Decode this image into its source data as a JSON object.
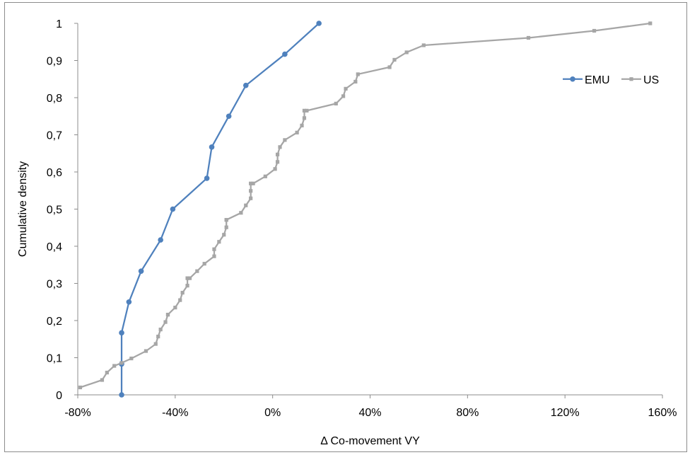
{
  "chart_data": {
    "type": "line",
    "title": "",
    "xlabel": "Δ Co-movement VY",
    "ylabel": "Cumulative density",
    "xlim": [
      -0.8,
      1.6
    ],
    "ylim": [
      0,
      1
    ],
    "x_ticks": [
      -0.8,
      -0.4,
      0,
      0.4,
      0.8,
      1.2,
      1.6
    ],
    "x_tick_labels": [
      "-80%",
      "-40%",
      "0%",
      "40%",
      "80%",
      "120%",
      "160%"
    ],
    "y_ticks": [
      0,
      0.1,
      0.2,
      0.3,
      0.4,
      0.5,
      0.6,
      0.7,
      0.8,
      0.9,
      1
    ],
    "y_tick_labels": [
      "0",
      "0,1",
      "0,2",
      "0,3",
      "0,4",
      "0,5",
      "0,6",
      "0,7",
      "0,8",
      "0,9",
      "1"
    ],
    "grid": false,
    "legend_position": "right",
    "series": [
      {
        "name": "EMU",
        "color": "#4f81bd",
        "marker": "circle",
        "x": [
          -0.62,
          -0.62,
          -0.62,
          -0.59,
          -0.54,
          -0.46,
          -0.41,
          -0.27,
          -0.25,
          -0.18,
          -0.11,
          0.05,
          0.19
        ],
        "y": [
          0,
          0.083,
          0.167,
          0.25,
          0.333,
          0.417,
          0.5,
          0.583,
          0.667,
          0.75,
          0.833,
          0.917,
          1.0
        ]
      },
      {
        "name": "US",
        "color": "#a6a6a6",
        "marker": "square",
        "x": [
          -0.79,
          -0.7,
          -0.68,
          -0.65,
          -0.62,
          -0.58,
          -0.52,
          -0.48,
          -0.47,
          -0.46,
          -0.44,
          -0.43,
          -0.43,
          -0.4,
          -0.38,
          -0.37,
          -0.35,
          -0.35,
          -0.34,
          -0.31,
          -0.28,
          -0.24,
          -0.24,
          -0.22,
          -0.2,
          -0.19,
          -0.19,
          -0.19,
          -0.13,
          -0.11,
          -0.09,
          -0.09,
          -0.09,
          -0.08,
          -0.03,
          0.01,
          0.02,
          0.02,
          0.03,
          0.05,
          0.1,
          0.12,
          0.13,
          0.13,
          0.14,
          0.26,
          0.29,
          0.3,
          0.34,
          0.35,
          0.48,
          0.5,
          0.55,
          0.62,
          1.05,
          1.32,
          1.55
        ],
        "y": [
          0.02,
          0.04,
          0.06,
          0.078,
          0.086,
          0.098,
          0.118,
          0.137,
          0.157,
          0.176,
          0.196,
          0.216,
          0.216,
          0.235,
          0.255,
          0.275,
          0.294,
          0.314,
          0.314,
          0.333,
          0.353,
          0.373,
          0.392,
          0.412,
          0.431,
          0.451,
          0.471,
          0.471,
          0.49,
          0.51,
          0.529,
          0.549,
          0.569,
          0.569,
          0.588,
          0.608,
          0.627,
          0.647,
          0.667,
          0.686,
          0.706,
          0.725,
          0.745,
          0.765,
          0.765,
          0.784,
          0.804,
          0.824,
          0.843,
          0.863,
          0.882,
          0.902,
          0.922,
          0.941,
          0.961,
          0.98,
          1.0
        ]
      }
    ]
  }
}
